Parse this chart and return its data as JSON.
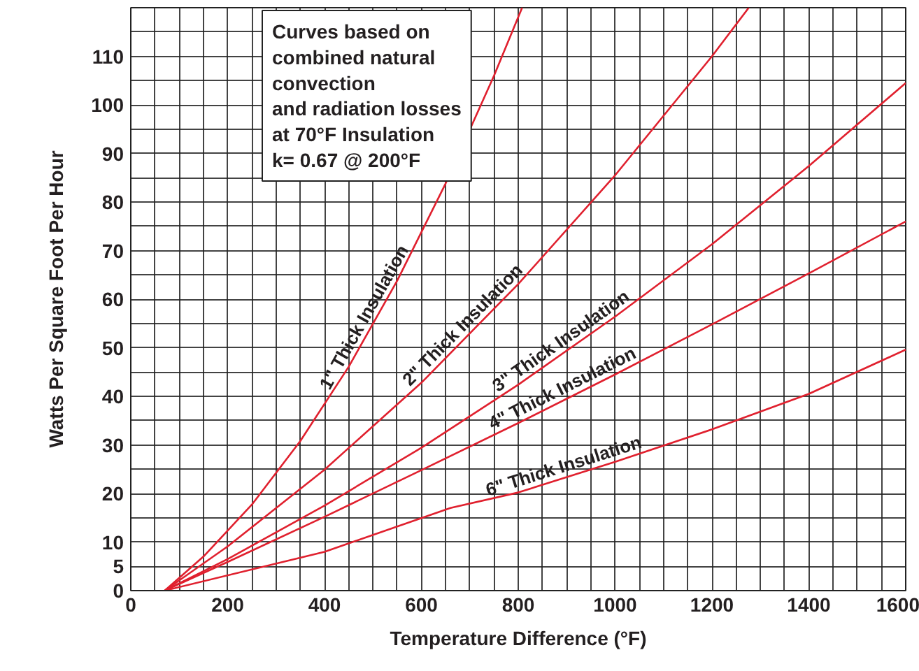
{
  "chart_data": {
    "type": "line",
    "xlabel": "Temperature Difference (°F)",
    "ylabel": "Watts Per Square Foot Per Hour",
    "annotations": [
      "Curves based on\ncombined natural\nconvection\nand radiation losses\nat 70°F Insulation\nk= 0.67 @ 200°F"
    ],
    "series": [
      {
        "name": "1\" Thick Insulation",
        "color": "#e0202e",
        "x": [
          70,
          150,
          250,
          350,
          450,
          550,
          650,
          750,
          808
        ],
        "values": [
          0,
          7,
          17.7,
          30.8,
          46.1,
          63.8,
          83.8,
          106,
          120
        ]
      },
      {
        "name": "2\" Thick Insulation",
        "color": "#e0202e",
        "x": [
          70,
          200,
          400,
          600,
          800,
          1000,
          1200,
          1276
        ],
        "values": [
          0,
          9.1,
          24.9,
          42.8,
          63.1,
          85.5,
          110,
          120
        ]
      },
      {
        "name": "3\" Thick Insulation",
        "color": "#e0202e",
        "x": [
          70,
          200,
          400,
          600,
          800,
          1000,
          1200,
          1400,
          1600
        ],
        "values": [
          0,
          6.5,
          17.5,
          29.4,
          42.4,
          56.4,
          71.3,
          87.4,
          104.5
        ]
      },
      {
        "name": "4\" Thick Insulation",
        "color": "#e0202e",
        "x": [
          70,
          200,
          400,
          600,
          800,
          1000,
          1200,
          1400,
          1600
        ],
        "values": [
          0,
          5.9,
          15.2,
          24.8,
          34.5,
          44.5,
          54.8,
          65.3,
          76
        ]
      },
      {
        "name": "6\" Thick Insulation",
        "color": "#e0202e",
        "x": [
          70,
          400,
          660,
          800,
          1000,
          1200,
          1400,
          1600
        ],
        "values": [
          0,
          8,
          17,
          20.2,
          26.5,
          33.2,
          40.5,
          49.6
        ]
      }
    ],
    "xlim": [
      0,
      1600
    ],
    "ylim": [
      0,
      120
    ],
    "xticks": [
      0,
      {
        "value": 50,
        "label": null
      },
      {
        "value": 100,
        "label": null
      },
      {
        "value": 150,
        "label": null
      },
      200,
      {
        "value": 250,
        "label": null
      },
      {
        "value": 300,
        "label": null
      },
      {
        "value": 350,
        "label": null
      },
      400,
      {
        "value": 450,
        "label": null
      },
      {
        "value": 500,
        "label": null
      },
      {
        "value": 550,
        "label": null
      },
      600,
      {
        "value": 650,
        "label": null
      },
      {
        "value": 700,
        "label": null
      },
      {
        "value": 750,
        "label": null
      },
      800,
      {
        "value": 850,
        "label": null
      },
      {
        "value": 900,
        "label": null
      },
      {
        "value": 950,
        "label": null
      },
      1000,
      {
        "value": 1050,
        "label": null
      },
      {
        "value": 1100,
        "label": null
      },
      {
        "value": 1150,
        "label": null
      },
      1200,
      {
        "value": 1250,
        "label": null
      },
      {
        "value": 1300,
        "label": null
      },
      {
        "value": 1350,
        "label": null
      },
      1400,
      {
        "value": 1450,
        "label": null
      },
      {
        "value": 1500,
        "label": null
      },
      {
        "value": 1550,
        "label": null
      },
      1600
    ],
    "yticks": [
      0,
      5,
      10,
      {
        "value": 15,
        "label": null
      },
      20,
      {
        "value": 25,
        "label": null
      },
      30,
      {
        "value": 35,
        "label": null
      },
      40,
      {
        "value": 45,
        "label": null
      },
      50,
      {
        "value": 55,
        "label": null
      },
      60,
      {
        "value": 65,
        "label": null
      },
      70,
      {
        "value": 75,
        "label": null
      },
      80,
      {
        "value": 85,
        "label": null
      },
      90,
      {
        "value": 95,
        "label": null
      },
      100,
      {
        "value": 105,
        "label": null
      },
      110,
      {
        "value": 115,
        "label": null
      },
      {
        "value": 120,
        "label": null
      }
    ],
    "grid": true,
    "marker": "none",
    "line_style": "solid"
  }
}
